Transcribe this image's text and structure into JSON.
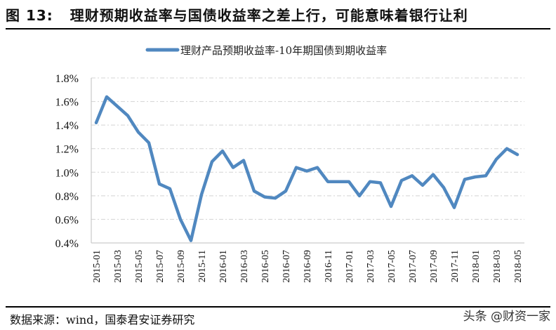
{
  "header": {
    "figure_label": "图 13:",
    "title": "理财预期收益率与国债收益率之差上行，可能意味着银行让利"
  },
  "footer": {
    "source": "数据来源：wind，国泰君安证券研究",
    "watermark": "头条 @财资一家"
  },
  "colors": {
    "series": "#5088c0",
    "grid": "#d4d4d4",
    "axis": "#bfbfbf"
  },
  "chart_data": {
    "type": "line",
    "title": "理财预期收益率与国债收益率之差上行，可能意味着银行让利",
    "xlabel": "",
    "ylabel": "",
    "ylim": [
      0.4,
      1.8
    ],
    "yticks": [
      "1.8%",
      "1.6%",
      "1.4%",
      "1.2%",
      "1.0%",
      "0.8%",
      "0.6%",
      "0.4%"
    ],
    "ytick_values": [
      1.8,
      1.6,
      1.4,
      1.2,
      1.0,
      0.8,
      0.6,
      0.4
    ],
    "grid": true,
    "legend_position": "top",
    "x": [
      "2015-01",
      "2015-02",
      "2015-03",
      "2015-04",
      "2015-05",
      "2015-06",
      "2015-07",
      "2015-08",
      "2015-09",
      "2015-10",
      "2015-11",
      "2015-12",
      "2016-01",
      "2016-02",
      "2016-03",
      "2016-04",
      "2016-05",
      "2016-06",
      "2016-07",
      "2016-08",
      "2016-09",
      "2016-10",
      "2016-11",
      "2016-12",
      "2017-01",
      "2017-02",
      "2017-03",
      "2017-04",
      "2017-05",
      "2017-06",
      "2017-07",
      "2017-08",
      "2017-09",
      "2017-10",
      "2017-11",
      "2017-12",
      "2018-01",
      "2018-02",
      "2018-03",
      "2018-04",
      "2018-05"
    ],
    "xtick_labels": [
      "2015-01",
      "2015-03",
      "2015-05",
      "2015-07",
      "2015-09",
      "2015-11",
      "2016-01",
      "2016-03",
      "2016-05",
      "2016-07",
      "2016-09",
      "2016-11",
      "2017-01",
      "2017-03",
      "2017-05",
      "2017-07",
      "2017-09",
      "2017-11",
      "2018-01",
      "2018-03",
      "2018-05"
    ],
    "series": [
      {
        "name": "理财产品预期收益率-10年期国债到期收益率",
        "values": [
          1.42,
          1.64,
          1.56,
          1.48,
          1.34,
          1.25,
          0.9,
          0.86,
          0.6,
          0.42,
          0.81,
          1.09,
          1.18,
          1.04,
          1.1,
          0.84,
          0.79,
          0.78,
          0.84,
          1.04,
          1.01,
          1.04,
          0.92,
          0.92,
          0.92,
          0.8,
          0.92,
          0.91,
          0.71,
          0.93,
          0.97,
          0.89,
          0.98,
          0.87,
          0.7,
          0.94,
          0.96,
          0.97,
          1.11,
          1.2,
          1.15
        ]
      }
    ]
  }
}
